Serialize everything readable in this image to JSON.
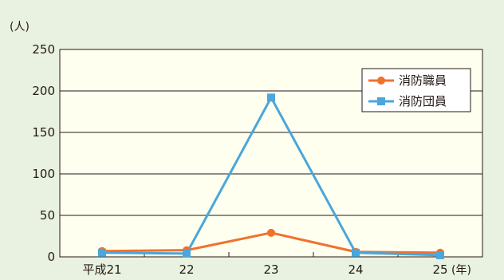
{
  "chart_data": {
    "type": "line",
    "categories": [
      "平成21",
      "22",
      "23",
      "24",
      "25"
    ],
    "x_unit": "(年)",
    "y_unit": "(人)",
    "ylim": [
      0,
      250
    ],
    "yticks": [
      0,
      50,
      100,
      150,
      200,
      250
    ],
    "grid": true,
    "legend_position": "top-right",
    "series": [
      {
        "name": "消防職員",
        "values": [
          7,
          8,
          29,
          6,
          5
        ],
        "color": "#f0712d",
        "marker": "circle"
      },
      {
        "name": "消防団員",
        "values": [
          5,
          4,
          192,
          5,
          2
        ],
        "color": "#4aa6db",
        "marker": "square"
      }
    ]
  },
  "colors": {
    "background": "#e9f2e0",
    "plot_area": "#fffff0",
    "grid": "#231815"
  }
}
